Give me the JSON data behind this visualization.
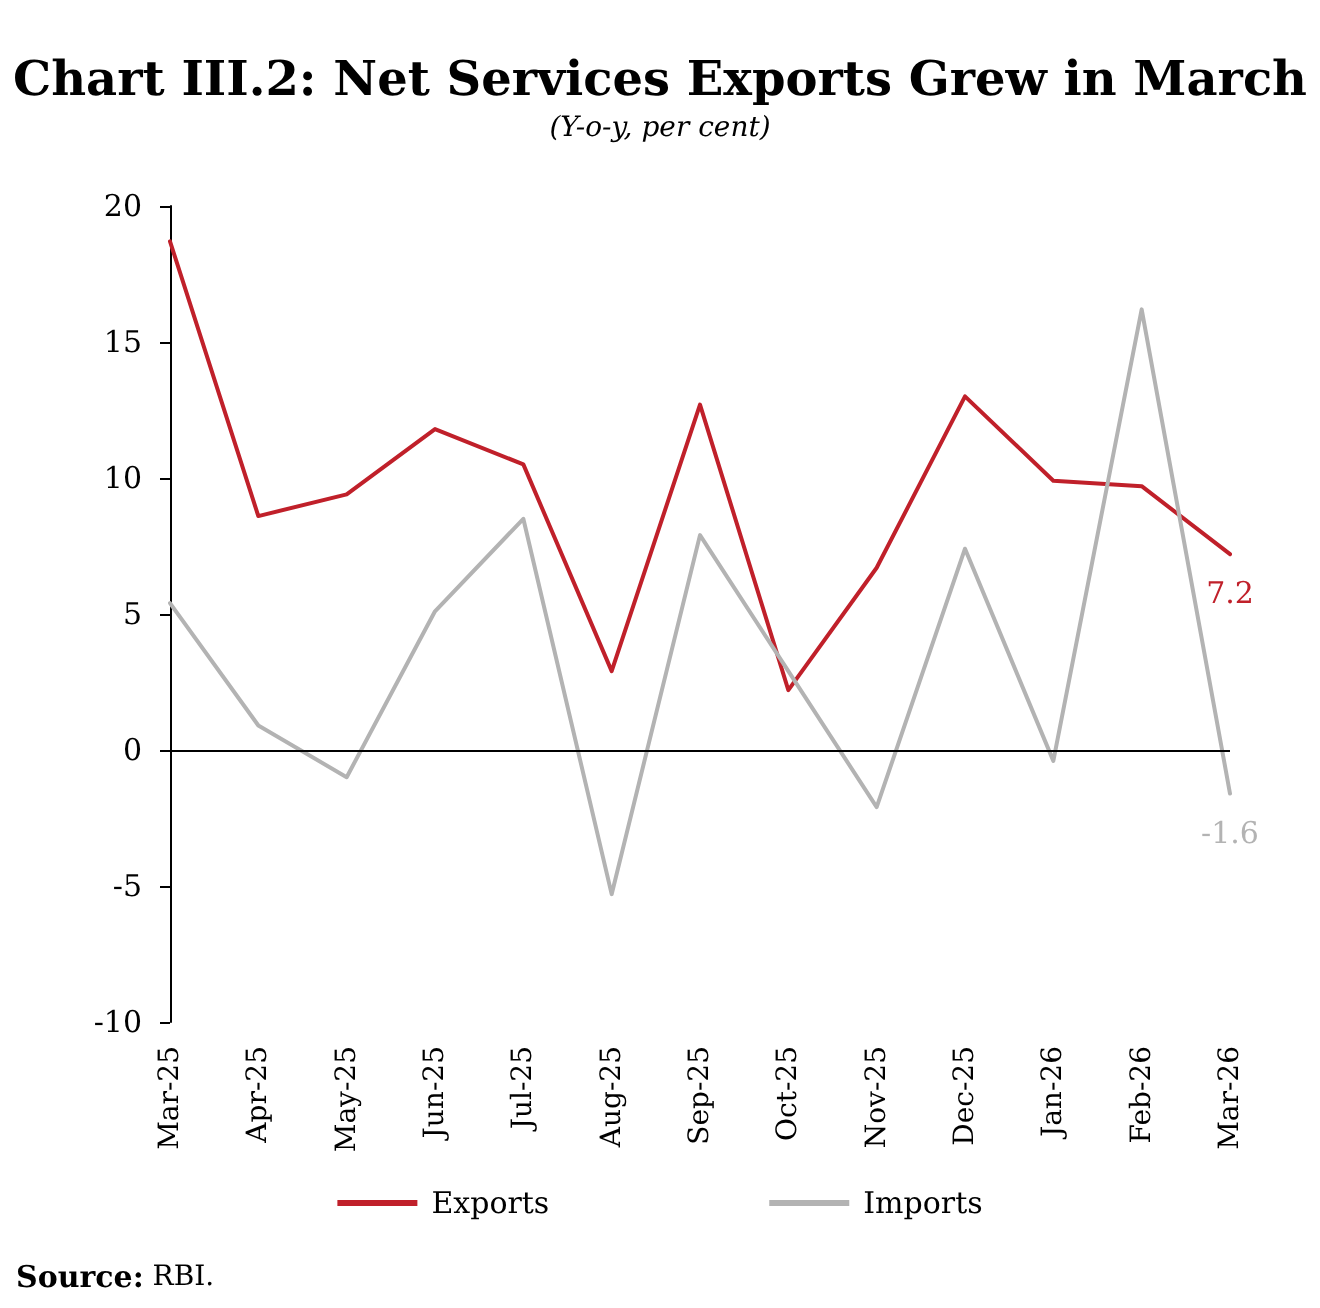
{
  "chart_data": {
    "type": "line",
    "title": "Chart III.2: Net Services Exports Grew in March",
    "subtitle": "(Y-o-y, per cent)",
    "categories": [
      "Mar-25",
      "Apr-25",
      "May-25",
      "Jun-25",
      "Jul-25",
      "Aug-25",
      "Sep-25",
      "Oct-25",
      "Nov-25",
      "Dec-25",
      "Jan-26",
      "Feb-26",
      "Mar-26"
    ],
    "series": [
      {
        "name": "Exports",
        "color": "#c0202a",
        "values": [
          18.7,
          8.6,
          9.4,
          11.8,
          10.5,
          2.9,
          12.7,
          2.2,
          6.7,
          13.0,
          9.9,
          9.7,
          7.2
        ],
        "value_labels": [
          null,
          null,
          null,
          null,
          null,
          null,
          null,
          null,
          null,
          null,
          null,
          null,
          "7.2"
        ]
      },
      {
        "name": "Imports",
        "color": "#b3b3b3",
        "values": [
          5.4,
          0.9,
          -1.0,
          5.1,
          8.5,
          -5.3,
          7.9,
          2.9,
          -2.1,
          7.4,
          -0.4,
          16.2,
          -1.6
        ],
        "value_labels": [
          null,
          null,
          null,
          null,
          null,
          null,
          null,
          null,
          null,
          null,
          null,
          null,
          "-1.6"
        ]
      }
    ],
    "ylim": [
      -10,
      20
    ],
    "yticks": [
      -10,
      -5,
      0,
      5,
      10,
      15,
      20
    ],
    "grid": false,
    "ref_lines": [
      {
        "axis": "y",
        "value": 0,
        "color": "#000000"
      }
    ],
    "legend": "bottom",
    "marker": "none",
    "line_style": "solid",
    "annotations": [
      "Source: RBI."
    ]
  }
}
